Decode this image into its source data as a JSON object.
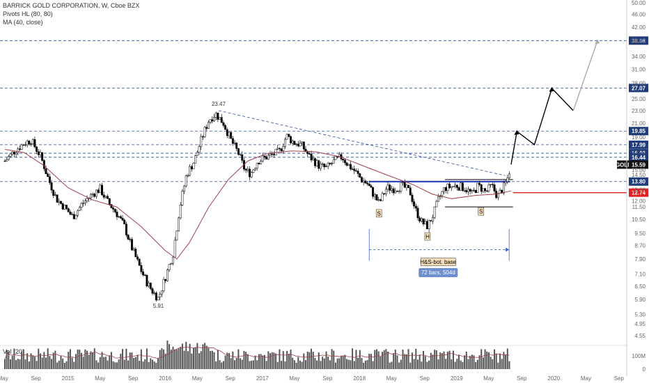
{
  "header": {
    "title": "BARRICK GOLD CORPORATION, W, Cboe BZX",
    "indicator1": "Pivots HL (80, 80)",
    "indicator2": "MA (40, close)",
    "volume_label": "Vol (20)"
  },
  "colors": {
    "up": "#ffffff",
    "down": "#000000",
    "ma": "#a0404a",
    "level": "#2a4aa0",
    "tag": "#1f3b7a",
    "red": "#e02020",
    "blue_line": "#1a2fb0",
    "measure": "#3a62c8"
  },
  "chart_data": {
    "type": "candlestick",
    "symbol": "GOLD",
    "last_price": "15.59",
    "y_ticks": [
      "50.00",
      "46.00",
      "42.00",
      "38.00",
      "34.00",
      "31.00",
      "28.00",
      "25.00",
      "23.00",
      "21.00",
      "19.00",
      "17.00",
      "15.00",
      "14.50",
      "13.00",
      "12.00",
      "11.50",
      "10.50",
      "9.50",
      "8.70",
      "7.90",
      "7.10",
      "6.50",
      "5.90",
      "5.30",
      "4.95",
      "4.55"
    ],
    "x_ticks": [
      "May",
      "Sep",
      "2015",
      "May",
      "Sep",
      "2016",
      "May",
      "Sep",
      "2017",
      "May",
      "Sep",
      "2018",
      "May",
      "Sep",
      "2019",
      "May",
      "Sep",
      "2020",
      "May",
      "Sep"
    ],
    "levels": [
      "38.08",
      "27.07",
      "19.85",
      "17.99",
      "16.92",
      "16.44",
      "13.80",
      "12.74"
    ],
    "annotations": {
      "high": "23.47",
      "low": "5.91",
      "left_shoulder": "S",
      "head": "H",
      "right_shoulder": "S",
      "pattern_label": "H&S-bot. base",
      "measure_label": "72 bars, 504d"
    },
    "price_path": [
      [
        2014.35,
        16.0
      ],
      [
        2014.45,
        17.2
      ],
      [
        2014.55,
        18.2
      ],
      [
        2014.62,
        18.6
      ],
      [
        2014.72,
        16.5
      ],
      [
        2014.8,
        14.0
      ],
      [
        2014.88,
        12.2
      ],
      [
        2014.96,
        11.5
      ],
      [
        2015.05,
        10.7
      ],
      [
        2015.15,
        11.8
      ],
      [
        2015.25,
        12.6
      ],
      [
        2015.33,
        13.1
      ],
      [
        2015.4,
        12.0
      ],
      [
        2015.5,
        11.0
      ],
      [
        2015.58,
        10.0
      ],
      [
        2015.66,
        8.5
      ],
      [
        2015.75,
        7.3
      ],
      [
        2015.82,
        6.6
      ],
      [
        2015.88,
        6.2
      ],
      [
        2015.93,
        5.95
      ],
      [
        2016.0,
        6.9
      ],
      [
        2016.08,
        8.2
      ],
      [
        2016.15,
        11.5
      ],
      [
        2016.22,
        14.5
      ],
      [
        2016.3,
        16.0
      ],
      [
        2016.38,
        19.0
      ],
      [
        2016.45,
        21.5
      ],
      [
        2016.52,
        22.5
      ],
      [
        2016.6,
        21.0
      ],
      [
        2016.68,
        18.5
      ],
      [
        2016.75,
        17.0
      ],
      [
        2016.82,
        15.0
      ],
      [
        2016.88,
        14.6
      ],
      [
        2016.95,
        16.0
      ],
      [
        2017.05,
        16.5
      ],
      [
        2017.12,
        16.8
      ],
      [
        2017.18,
        17.2
      ],
      [
        2017.25,
        19.2
      ],
      [
        2017.32,
        18.3
      ],
      [
        2017.4,
        18.0
      ],
      [
        2017.48,
        16.6
      ],
      [
        2017.58,
        15.5
      ],
      [
        2017.66,
        15.2
      ],
      [
        2017.74,
        16.0
      ],
      [
        2017.82,
        16.5
      ],
      [
        2017.88,
        15.6
      ],
      [
        2017.95,
        14.9
      ],
      [
        2018.02,
        14.0
      ],
      [
        2018.08,
        13.6
      ],
      [
        2018.15,
        12.5
      ],
      [
        2018.2,
        11.8
      ],
      [
        2018.28,
        13.2
      ],
      [
        2018.36,
        13.1
      ],
      [
        2018.44,
        13.4
      ],
      [
        2018.52,
        12.8
      ],
      [
        2018.58,
        11.2
      ],
      [
        2018.64,
        10.3
      ],
      [
        2018.7,
        10.0
      ],
      [
        2018.76,
        10.9
      ],
      [
        2018.82,
        12.3
      ],
      [
        2018.88,
        13.2
      ],
      [
        2018.94,
        13.3
      ],
      [
        2019.0,
        13.4
      ],
      [
        2019.08,
        13.2
      ],
      [
        2019.16,
        12.6
      ],
      [
        2019.22,
        13.4
      ],
      [
        2019.3,
        12.8
      ],
      [
        2019.36,
        13.4
      ],
      [
        2019.42,
        12.4
      ],
      [
        2019.48,
        13.2
      ],
      [
        2019.52,
        14.0
      ],
      [
        2019.56,
        15.6
      ]
    ],
    "ma_path": [
      [
        2014.35,
        17.4
      ],
      [
        2014.55,
        17.0
      ],
      [
        2014.75,
        15.5
      ],
      [
        2015.0,
        13.2
      ],
      [
        2015.25,
        12.1
      ],
      [
        2015.5,
        11.5
      ],
      [
        2015.75,
        10.0
      ],
      [
        2016.0,
        8.4
      ],
      [
        2016.12,
        7.9
      ],
      [
        2016.25,
        8.9
      ],
      [
        2016.45,
        11.5
      ],
      [
        2016.65,
        14.0
      ],
      [
        2016.85,
        16.0
      ],
      [
        2017.05,
        16.9
      ],
      [
        2017.3,
        17.2
      ],
      [
        2017.55,
        17.1
      ],
      [
        2017.8,
        16.5
      ],
      [
        2018.05,
        15.4
      ],
      [
        2018.3,
        14.4
      ],
      [
        2018.55,
        13.5
      ],
      [
        2018.75,
        12.6
      ],
      [
        2018.95,
        12.2
      ],
      [
        2019.2,
        12.5
      ],
      [
        2019.4,
        12.6
      ],
      [
        2019.56,
        12.9
      ]
    ],
    "projection": [
      [
        2019.56,
        15.6
      ],
      [
        2019.62,
        19.8
      ],
      [
        2019.8,
        18.0
      ],
      [
        2019.98,
        27.0
      ],
      [
        2020.2,
        23.0
      ]
    ],
    "projection_final": [
      [
        2020.2,
        23.0
      ],
      [
        2020.45,
        38.1
      ]
    ],
    "resistance_trendline": [
      [
        2016.55,
        23.0
      ],
      [
        2019.5,
        14.4
      ]
    ],
    "neckline": [
      [
        2018.1,
        13.8
      ],
      [
        2019.55,
        13.8
      ]
    ],
    "support_line": [
      [
        2018.88,
        11.5
      ],
      [
        2019.58,
        11.5
      ]
    ],
    "measure_range": [
      2018.1,
      2019.54
    ]
  }
}
